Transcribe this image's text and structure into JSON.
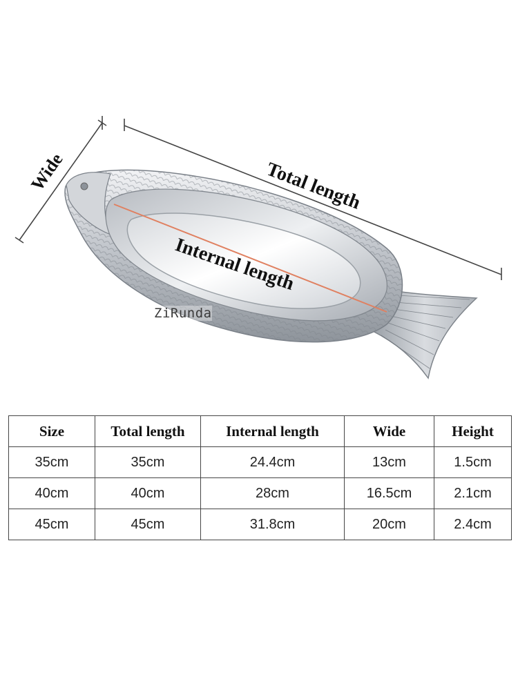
{
  "diagram": {
    "wide_label": "Wide",
    "total_length_label": "Total length",
    "internal_length_label": "Internal length",
    "watermark": "ZiRunda",
    "colors": {
      "dimension_line": "#444444",
      "internal_line": "#e08060",
      "plate_metal": "#c9cdd2"
    }
  },
  "table": {
    "headers": [
      "Size",
      "Total length",
      "Internal length",
      "Wide",
      "Height"
    ],
    "rows": [
      [
        "35cm",
        "35cm",
        "24.4cm",
        "13cm",
        "1.5cm"
      ],
      [
        "40cm",
        "40cm",
        "28cm",
        "16.5cm",
        "2.1cm"
      ],
      [
        "45cm",
        "45cm",
        "31.8cm",
        "20cm",
        "2.4cm"
      ]
    ]
  }
}
